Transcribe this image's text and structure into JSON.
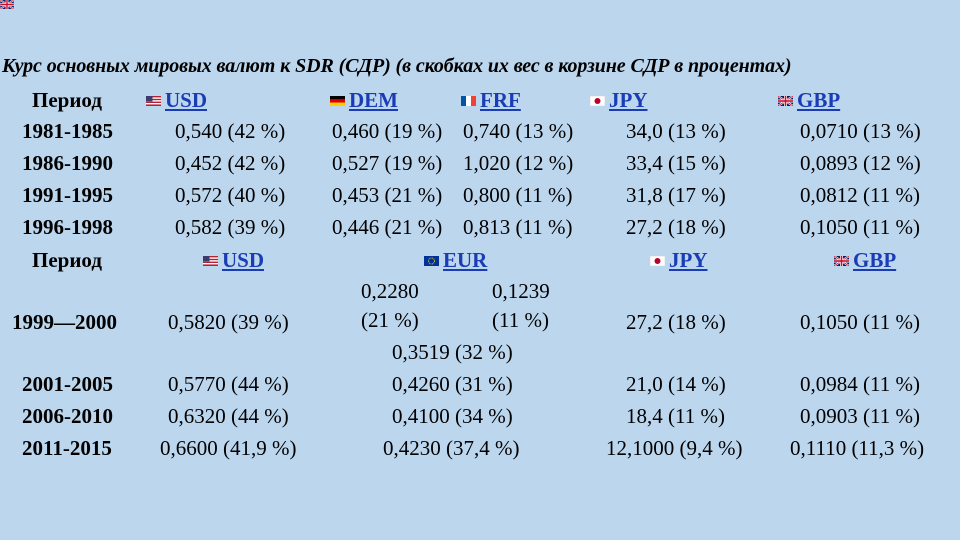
{
  "title": "Курс основных мировых валют к SDR (СДР) (в скобках их вес в корзине СДР в процентах)",
  "header1": {
    "period": "Период",
    "usd": "USD",
    "dem": "DEM",
    "frf": "FRF",
    "jpy": "JPY",
    "gbp": "GBP"
  },
  "rows1": [
    {
      "period": "1981-1985",
      "usd": "0,540 (42 %)",
      "dem": "0,460 (19 %)",
      "frf": "0,740 (13 %)",
      "jpy": "34,0 (13 %)",
      "gbp": "0,0710 (13 %)"
    },
    {
      "period": "1986-1990",
      "usd": "0,452 (42 %)",
      "dem": "0,527 (19 %)",
      "frf": "1,020 (12 %)",
      "jpy": "33,4 (15 %)",
      "gbp": "0,0893 (12 %)"
    },
    {
      "period": "1991-1995",
      "usd": "0,572 (40 %)",
      "dem": "0,453 (21 %)",
      "frf": "0,800 (11 %)",
      "jpy": "31,8 (17 %)",
      "gbp": "0,0812 (11 %)"
    },
    {
      "period": "1996-1998",
      "usd": "0,582 (39 %)",
      "dem": "0,446 (21 %)",
      "frf": "0,813 (11 %)",
      "jpy": "27,2 (18 %)",
      "gbp": "0,1050 (11 %)"
    }
  ],
  "header2": {
    "period": "Период",
    "usd": "USD",
    "eur": "EUR",
    "jpy": "JPY",
    "gbp": "GBP"
  },
  "row_1999": {
    "period": "1999—2000",
    "usd": "0,5820 (39 %)",
    "eur_a_val": "0,2280",
    "eur_a_pct": "(21 %)",
    "eur_b_val": "0,1239",
    "eur_b_pct": "(11 %)",
    "eur_total": "0,3519 (32 %)",
    "jpy": "27,2 (18 %)",
    "gbp": "0,1050 (11 %)"
  },
  "rows2": [
    {
      "period": "2001-2005",
      "usd": "0,5770 (44 %)",
      "eur": "0,4260 (31 %)",
      "jpy": "21,0 (14 %)",
      "gbp": "0,0984 (11 %)"
    },
    {
      "period": "2006-2010",
      "usd": "0,6320 (44 %)",
      "eur": "0,4100 (34 %)",
      "jpy": "18,4 (11 %)",
      "gbp": "0,0903 (11 %)"
    },
    {
      "period": "2011-2015",
      "usd": "0,6600 (41,9 %)",
      "eur": "0,4230 (37,4 %)",
      "jpy": "12,1000 (9,4 %)",
      "gbp": "0,1110 (11,3 %)"
    }
  ],
  "colors": {
    "background": "#bcd6ee",
    "link": "#1a3cb4"
  },
  "icons": {
    "usd": "us-flag-icon",
    "dem": "germany-flag-icon",
    "frf": "france-flag-icon",
    "jpy": "japan-flag-icon",
    "gbp": "uk-flag-icon",
    "eur": "eu-flag-icon"
  }
}
